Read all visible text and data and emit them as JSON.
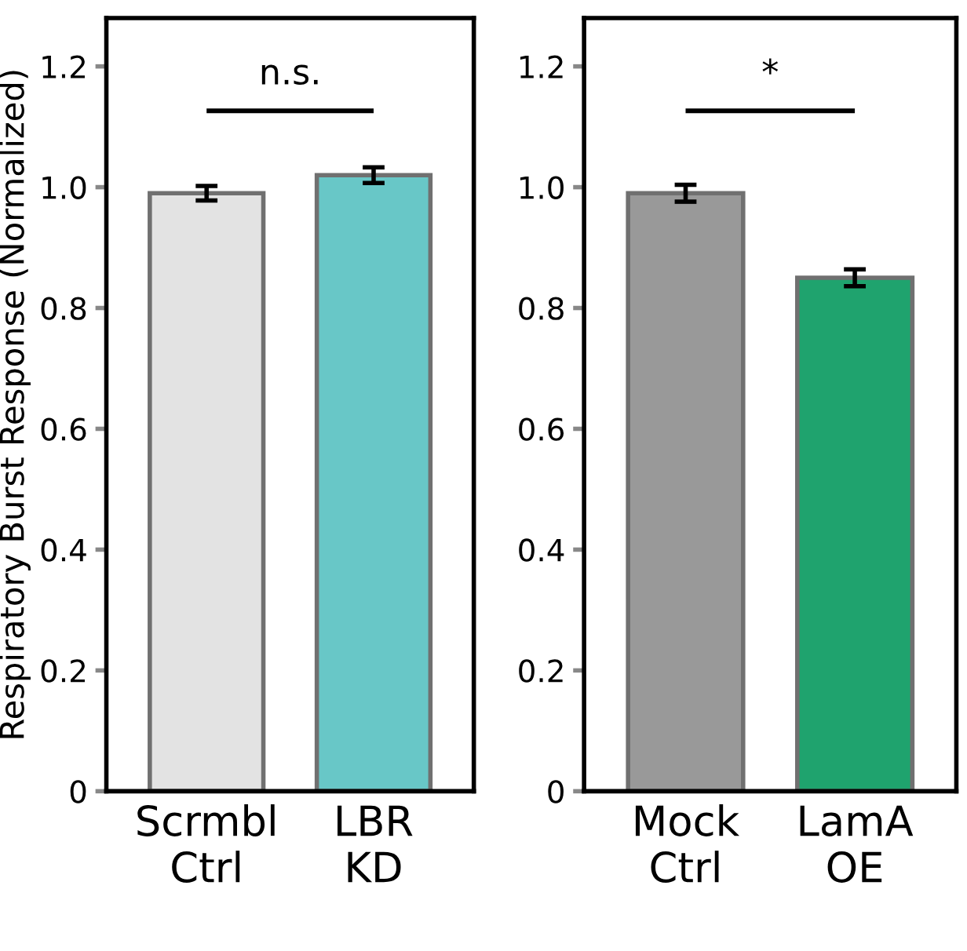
{
  "chart_data": [
    {
      "type": "bar",
      "ylabel": "Respiratory Burst Response (Normalized)",
      "categories": [
        "Scrmbl\nCtrl",
        "LBR\nKD"
      ],
      "values": [
        0.99,
        1.02
      ],
      "errors": [
        0.012,
        0.013
      ],
      "colors": [
        "#e3e3e3",
        "#68c7c7"
      ],
      "ylim": [
        0,
        1.28
      ],
      "yticks": [
        0,
        0.2,
        0.4,
        0.6,
        0.8,
        {
          "value": 1.0,
          "label": "1.0"
        },
        1.2
      ],
      "grid": false,
      "annotations": [
        "n.s."
      ]
    },
    {
      "type": "bar",
      "categories": [
        "Mock\nCtrl",
        "LamA\nOE"
      ],
      "values": [
        0.99,
        0.85
      ],
      "errors": [
        0.014,
        0.014
      ],
      "colors": [
        "#999999",
        "#1fa36e"
      ],
      "ylim": [
        0,
        1.28
      ],
      "yticks": [
        0,
        0.2,
        0.4,
        0.6,
        0.8,
        {
          "value": 1.0,
          "label": "1.0"
        },
        1.2
      ],
      "grid": false,
      "annotations": [
        "*"
      ]
    }
  ]
}
